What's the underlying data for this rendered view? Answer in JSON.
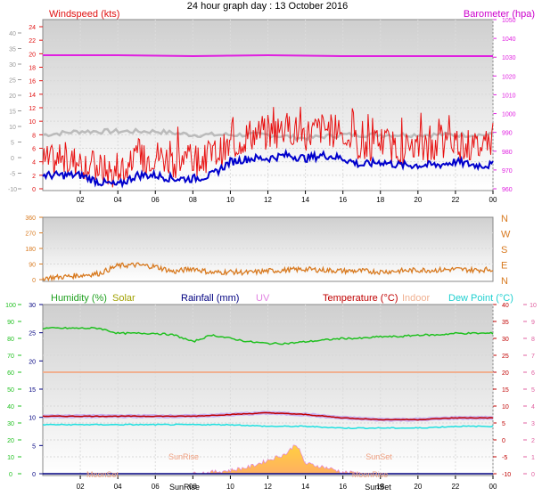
{
  "title": "24 hour graph day : 13 October 2016",
  "x_ticks": [
    "02",
    "04",
    "06",
    "08",
    "10",
    "12",
    "14",
    "16",
    "18",
    "20",
    "22",
    "00"
  ],
  "colors": {
    "wind": "#e81010",
    "wind_avg": "#0000cc",
    "gust_line": "#bbbbbb",
    "baro": "#e020e0",
    "humidity": "#20c020",
    "solar": "#c0c000",
    "rain": "#000080",
    "uv": "#e080e0",
    "temp": "#c00000",
    "indoor": "#f0b090",
    "dew": "#20e0e0",
    "dir": "#d87a20"
  },
  "panel1": {
    "left_title": "Windspeed (kts)",
    "right_title": "Barometer (hpa)",
    "far_left_ticks": [
      "40",
      "35",
      "30",
      "25",
      "20",
      "15",
      "10",
      "5",
      "0",
      "-5",
      "-10"
    ],
    "left_ticks": [
      "24",
      "22",
      "20",
      "18",
      "16",
      "14",
      "12",
      "10",
      "8",
      "6",
      "4",
      "2",
      "0"
    ],
    "right_ticks": [
      "1050",
      "1040",
      "1030",
      "1020",
      "1010",
      "1000",
      "990",
      "980",
      "970",
      "960"
    ]
  },
  "panel2": {
    "left_ticks": [
      "360",
      "270",
      "180",
      "90",
      "0"
    ],
    "right_labels": [
      "N",
      "W",
      "S",
      "E",
      "N"
    ]
  },
  "panel3": {
    "labels": {
      "humidity": "Humidity (%)",
      "solar": "Solar",
      "rain": "Rainfall (mm)",
      "uv": "UV",
      "temp": "Temperature (°C)",
      "indoor": "Indoor",
      "dew": "Dew Point (°C)"
    },
    "far_left_ticks": [
      "100",
      "90",
      "80",
      "70",
      "60",
      "50",
      "40",
      "30",
      "20",
      "10",
      "0"
    ],
    "left_ticks": [
      "30",
      "25",
      "20",
      "15",
      "10",
      "5",
      "0"
    ],
    "right_ticks": [
      "40",
      "35",
      "30",
      "25",
      "20",
      "15",
      "10",
      "5",
      "0",
      "-5",
      "-10"
    ],
    "far_right_ticks": [
      "10",
      "9",
      "8",
      "7",
      "6",
      "5",
      "4",
      "3",
      "2",
      "1",
      "0"
    ],
    "annotations": {
      "sunrise": "SunRise",
      "sunset": "SunSet",
      "moonset": "MoonSet",
      "moonrise": "MoonRise",
      "sunrise_axis": "SunRise",
      "sunset_axis": "SunSet"
    }
  },
  "chart_data": [
    {
      "type": "line",
      "x_range_hours": [
        0,
        24
      ],
      "series": [
        {
          "name": "Windspeed (kts)",
          "x": [
            0,
            1,
            2,
            3,
            4,
            5,
            6,
            7,
            8,
            9,
            10,
            11,
            12,
            13,
            14,
            15,
            16,
            17,
            18,
            19,
            20,
            21,
            22,
            23,
            24
          ],
          "values": [
            4,
            4,
            4,
            3,
            2,
            4,
            5,
            4,
            4,
            5,
            6,
            8,
            8,
            9,
            8,
            9,
            8,
            6,
            7,
            6,
            6,
            6,
            7,
            6,
            7
          ]
        },
        {
          "name": "Wind avg (kts)",
          "x": [
            0,
            1,
            2,
            3,
            4,
            5,
            6,
            7,
            8,
            9,
            10,
            11,
            12,
            13,
            14,
            15,
            16,
            17,
            18,
            19,
            20,
            21,
            22,
            23,
            24
          ],
          "values": [
            2,
            2,
            2,
            1,
            0.5,
            2,
            2,
            1.5,
            1.5,
            2,
            4,
            4.5,
            4.5,
            5,
            4.5,
            5,
            4.5,
            3.5,
            4,
            3.5,
            3.5,
            3.5,
            4,
            3.5,
            3.5
          ]
        },
        {
          "name": "Gust trend",
          "x": [
            0,
            2,
            4,
            6,
            8,
            10,
            12,
            14,
            16,
            18,
            20,
            22,
            24
          ],
          "values": [
            8,
            8.5,
            8.5,
            8.5,
            8,
            8,
            8,
            7.5,
            8,
            8,
            8,
            8,
            8
          ]
        },
        {
          "name": "Barometer (hpa)",
          "x": [
            0,
            4,
            8,
            12,
            16,
            20,
            24
          ],
          "values": [
            1030,
            1030,
            1029.5,
            1030,
            1029.5,
            1029.5,
            1029.5
          ]
        }
      ],
      "ylim": [
        -1,
        25
      ]
    },
    {
      "type": "line",
      "series": [
        {
          "name": "Wind direction",
          "x": [
            0,
            1,
            2,
            3,
            4,
            5,
            6,
            7,
            8,
            9,
            10,
            11,
            12,
            13,
            14,
            15,
            16,
            17,
            18,
            19,
            20,
            21,
            22,
            23,
            24
          ],
          "values": [
            10,
            15,
            25,
            35,
            80,
            85,
            75,
            45,
            65,
            40,
            45,
            40,
            50,
            55,
            60,
            55,
            50,
            50,
            45,
            50,
            55,
            55,
            60,
            55,
            60
          ]
        }
      ],
      "ylim": [
        0,
        360
      ]
    },
    {
      "type": "line",
      "series": [
        {
          "name": "Humidity (%)",
          "x": [
            0,
            1,
            2,
            3,
            4,
            5,
            6,
            7,
            8,
            9,
            10,
            11,
            12,
            13,
            14,
            15,
            16,
            17,
            18,
            19,
            20,
            21,
            22,
            23,
            24
          ],
          "values": [
            86,
            86,
            86,
            86,
            83,
            83,
            83,
            82,
            78,
            82,
            80,
            78,
            77,
            77,
            78,
            79,
            80,
            80,
            81,
            81,
            82,
            82,
            83,
            83,
            83
          ]
        },
        {
          "name": "Temperature (°C)",
          "x": [
            0,
            2,
            4,
            6,
            8,
            10,
            12,
            14,
            16,
            18,
            20,
            22,
            24
          ],
          "values": [
            7,
            7,
            7,
            7,
            7,
            7.5,
            8,
            7.5,
            6.5,
            6,
            6,
            6.5,
            6.5
          ]
        },
        {
          "name": "Indoor",
          "x": [
            0,
            4,
            8,
            12,
            16,
            20,
            24
          ],
          "values": [
            20,
            20,
            20,
            20,
            20,
            20,
            20
          ]
        },
        {
          "name": "Dew Point (°C)",
          "x": [
            0,
            2,
            4,
            6,
            8,
            10,
            12,
            14,
            16,
            18,
            20,
            22,
            24
          ],
          "values": [
            4.5,
            4.5,
            4.5,
            4.5,
            4.5,
            4.5,
            4,
            4,
            3.5,
            3.5,
            3.5,
            4,
            4
          ]
        },
        {
          "name": "Solar",
          "x": [
            8,
            9,
            10,
            11,
            12,
            13,
            13.5,
            14,
            15,
            16,
            17
          ],
          "values": [
            0,
            0.5,
            1,
            2,
            4,
            6,
            9,
            3,
            2,
            0.5,
            0
          ]
        },
        {
          "name": "Rainfall (mm)",
          "x": [
            0,
            24
          ],
          "values": [
            0,
            0
          ]
        }
      ],
      "ylim": [
        -10,
        40
      ]
    }
  ]
}
